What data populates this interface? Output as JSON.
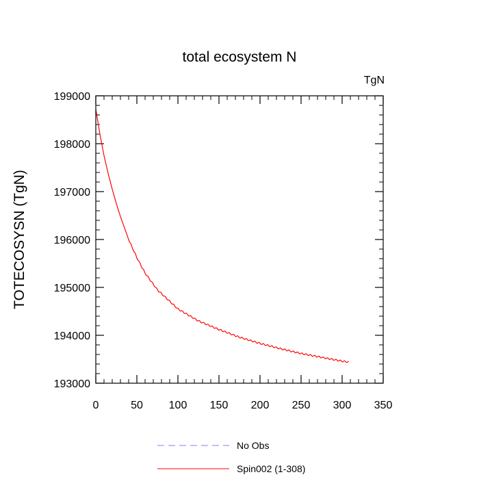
{
  "chart_data": {
    "type": "line",
    "title": "total ecosystem N",
    "units_label": "TgN",
    "xlabel": "",
    "ylabel": "TOTECOSYSN  (TgN)",
    "xlim": [
      0,
      350
    ],
    "ylim": [
      193000,
      199000
    ],
    "x_ticks": [
      0,
      50,
      100,
      150,
      200,
      250,
      300,
      350
    ],
    "y_ticks": [
      193000,
      194000,
      195000,
      196000,
      197000,
      198000,
      199000
    ],
    "x_tick_labels": [
      "0",
      "50",
      "100",
      "150",
      "200",
      "250",
      "300",
      "350"
    ],
    "y_tick_labels": [
      "193000",
      "194000",
      "195000",
      "196000",
      "197000",
      "198000",
      "199000"
    ],
    "series": [
      {
        "name": "Spin002 (1-308)",
        "color": "#ff0000",
        "style": "solid",
        "x": [
          0,
          5,
          10,
          15,
          20,
          25,
          30,
          40,
          50,
          60,
          75,
          100,
          125,
          150,
          175,
          200,
          225,
          250,
          275,
          300,
          308
        ],
        "values": [
          198720,
          198200,
          197750,
          197380,
          197050,
          196750,
          196480,
          196000,
          195620,
          195300,
          194950,
          194550,
          194300,
          194120,
          193960,
          193830,
          193720,
          193620,
          193540,
          193460,
          193440
        ]
      }
    ],
    "legend": [
      {
        "label": "No Obs",
        "color": "#7f7fff",
        "style": "dashed"
      },
      {
        "label": "Spin002 (1-308)",
        "color": "#ff0000",
        "style": "solid"
      }
    ],
    "legend_position": "bottom-center"
  }
}
